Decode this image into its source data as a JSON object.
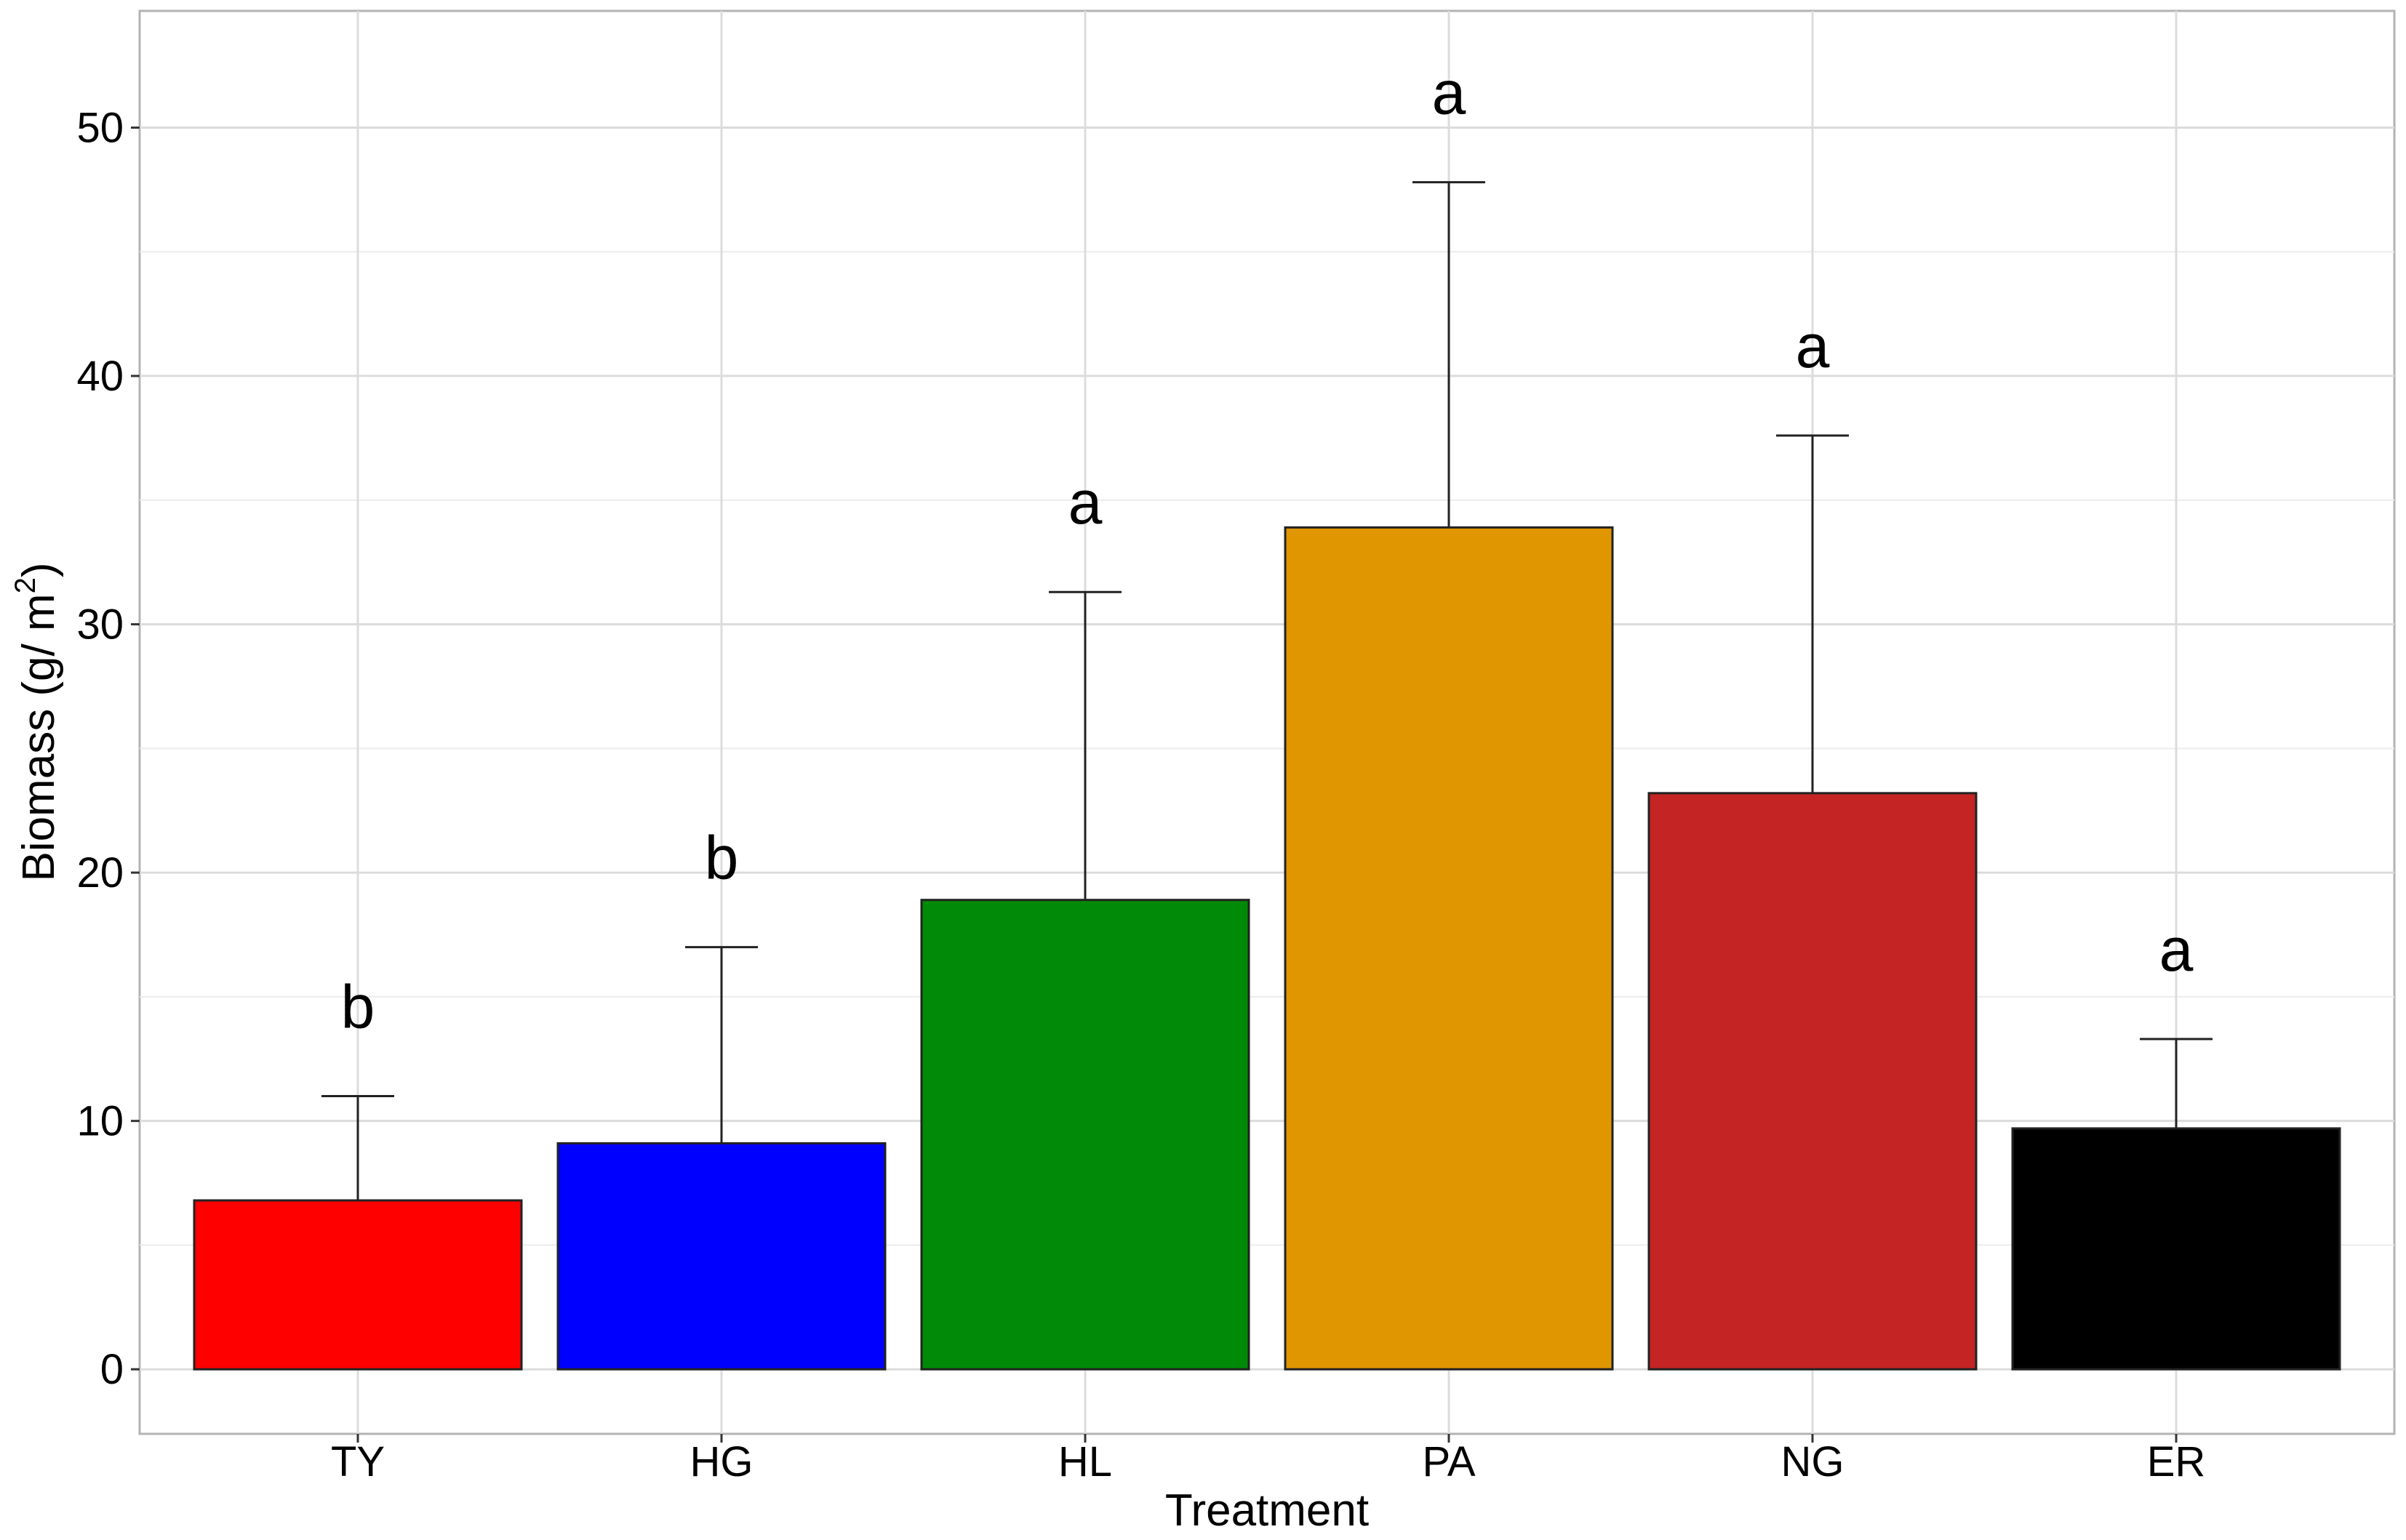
{
  "chart_data": {
    "type": "bar",
    "xlabel": "Treatment",
    "ylabel_main": "Biomass (g/ m",
    "ylabel_sup": "2",
    "ylabel_close": ")",
    "ylim": [
      -2.6,
      54.7
    ],
    "yticks": [
      0,
      10,
      20,
      30,
      40,
      50
    ],
    "grid": true,
    "categories": [
      "TY",
      "HG",
      "HL",
      "PA",
      "NG",
      "ER"
    ],
    "values": [
      6.8,
      9.1,
      18.9,
      33.9,
      23.2,
      9.7
    ],
    "error_upper": [
      11.0,
      17.0,
      31.3,
      47.8,
      37.6,
      13.3
    ],
    "letters": [
      "b",
      "b",
      "a",
      "a",
      "a",
      "a"
    ],
    "colors": [
      "#ff0000",
      "#0000ff",
      "#008a08",
      "#e09600",
      "#c42424",
      "#000000"
    ]
  }
}
